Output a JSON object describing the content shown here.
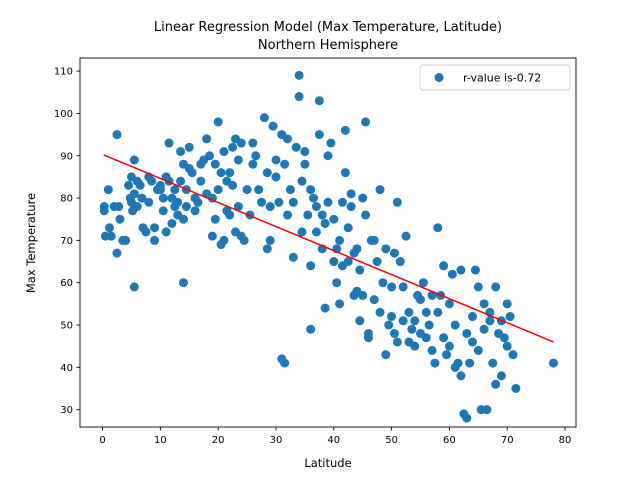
{
  "chart_data": {
    "type": "scatter",
    "title": "Linear Regression Model (Max Temperature, Latitude)",
    "subtitle": "Northern Hemisphere",
    "xlabel": "Latitude",
    "ylabel": "Max Temperature",
    "xlim": [
      -3.9,
      81.9
    ],
    "ylim": [
      25.9,
      113.1
    ],
    "xticks": [
      0,
      10,
      20,
      30,
      40,
      50,
      60,
      70,
      80
    ],
    "yticks": [
      30,
      40,
      50,
      60,
      70,
      80,
      90,
      100,
      110
    ],
    "grid": false,
    "legend": {
      "placement": "upper right",
      "label": "r-value is-0.72"
    },
    "colors": {
      "points": "#1f77b4",
      "regression": "#ff0000"
    },
    "regression": {
      "x": [
        0.2,
        78.0
      ],
      "y": [
        90.2,
        46.0
      ]
    },
    "series": [
      {
        "name": "r-value is-0.72",
        "points": [
          [
            0.3,
            78
          ],
          [
            0.3,
            77
          ],
          [
            0.5,
            71
          ],
          [
            1,
            82
          ],
          [
            1.2,
            73
          ],
          [
            1.5,
            71
          ],
          [
            2,
            78
          ],
          [
            2.5,
            95
          ],
          [
            2.5,
            67
          ],
          [
            2.8,
            78
          ],
          [
            3,
            75
          ],
          [
            3.5,
            70
          ],
          [
            4,
            70
          ],
          [
            4.5,
            83
          ],
          [
            4.8,
            80
          ],
          [
            5,
            85
          ],
          [
            5,
            79
          ],
          [
            5.2,
            77
          ],
          [
            5.5,
            89
          ],
          [
            5.5,
            59
          ],
          [
            5.5,
            81
          ],
          [
            6,
            84
          ],
          [
            6,
            78
          ],
          [
            6.5,
            83
          ],
          [
            6.8,
            80
          ],
          [
            7,
            73
          ],
          [
            7.5,
            72
          ],
          [
            8,
            85
          ],
          [
            8,
            79
          ],
          [
            8.5,
            84
          ],
          [
            9,
            70
          ],
          [
            9,
            73
          ],
          [
            9.5,
            82
          ],
          [
            10,
            83
          ],
          [
            10,
            82
          ],
          [
            10.5,
            80
          ],
          [
            10.5,
            77
          ],
          [
            11,
            72
          ],
          [
            11,
            85
          ],
          [
            11.5,
            93
          ],
          [
            11.5,
            84
          ],
          [
            12,
            80
          ],
          [
            12,
            74
          ],
          [
            12.5,
            78
          ],
          [
            12.5,
            82
          ],
          [
            13,
            76
          ],
          [
            13,
            79
          ],
          [
            13.5,
            84
          ],
          [
            13.5,
            91
          ],
          [
            14,
            88
          ],
          [
            14,
            75
          ],
          [
            14,
            60
          ],
          [
            14.5,
            82
          ],
          [
            14.5,
            78
          ],
          [
            15,
            87
          ],
          [
            15,
            92
          ],
          [
            15.5,
            86
          ],
          [
            16,
            80
          ],
          [
            16,
            77
          ],
          [
            16.5,
            79
          ],
          [
            17,
            84
          ],
          [
            17,
            88
          ],
          [
            17.5,
            89
          ],
          [
            18,
            81
          ],
          [
            18,
            94
          ],
          [
            18.5,
            90
          ],
          [
            19,
            71
          ],
          [
            19,
            80
          ],
          [
            19.5,
            75
          ],
          [
            19.5,
            88
          ],
          [
            20,
            98
          ],
          [
            20,
            82
          ],
          [
            20.5,
            86
          ],
          [
            20.5,
            69
          ],
          [
            21,
            91
          ],
          [
            21,
            70
          ],
          [
            21.5,
            84
          ],
          [
            21.5,
            77
          ],
          [
            22,
            86
          ],
          [
            22,
            76
          ],
          [
            22.5,
            83
          ],
          [
            22.5,
            92
          ],
          [
            23,
            94
          ],
          [
            23,
            72
          ],
          [
            23.5,
            78
          ],
          [
            23.5,
            89
          ],
          [
            24,
            93
          ],
          [
            24,
            71
          ],
          [
            24.5,
            70
          ],
          [
            25,
            82
          ],
          [
            25.5,
            76
          ],
          [
            26,
            88
          ],
          [
            26,
            93
          ],
          [
            26.5,
            90
          ],
          [
            27,
            82
          ],
          [
            27.5,
            79
          ],
          [
            28,
            99
          ],
          [
            28.5,
            86
          ],
          [
            28.5,
            68
          ],
          [
            29,
            70
          ],
          [
            29,
            78
          ],
          [
            29.5,
            97
          ],
          [
            30,
            85
          ],
          [
            30,
            89
          ],
          [
            30.5,
            79
          ],
          [
            31,
            95
          ],
          [
            31,
            42
          ],
          [
            31.5,
            41
          ],
          [
            31.5,
            88
          ],
          [
            32,
            94
          ],
          [
            32,
            76
          ],
          [
            32.5,
            82
          ],
          [
            33,
            66
          ],
          [
            33,
            79
          ],
          [
            33.5,
            92
          ],
          [
            34,
            104
          ],
          [
            34,
            109
          ],
          [
            34.5,
            84
          ],
          [
            34.5,
            72
          ],
          [
            35,
            88
          ],
          [
            35,
            91
          ],
          [
            35.5,
            76
          ],
          [
            36,
            82
          ],
          [
            36,
            49
          ],
          [
            36,
            64
          ],
          [
            36.5,
            80
          ],
          [
            37,
            72
          ],
          [
            37,
            78
          ],
          [
            37.5,
            95
          ],
          [
            37.5,
            103
          ],
          [
            38,
            76
          ],
          [
            38,
            68
          ],
          [
            38.5,
            74
          ],
          [
            38.5,
            54
          ],
          [
            39,
            90
          ],
          [
            39,
            79
          ],
          [
            39.5,
            93
          ],
          [
            40,
            75
          ],
          [
            40,
            65
          ],
          [
            40.5,
            68
          ],
          [
            40.5,
            60
          ],
          [
            41,
            70
          ],
          [
            41,
            55
          ],
          [
            41.5,
            64
          ],
          [
            41.5,
            79
          ],
          [
            42,
            96
          ],
          [
            42,
            86
          ],
          [
            42.5,
            73
          ],
          [
            42.5,
            65
          ],
          [
            43,
            78
          ],
          [
            43,
            81
          ],
          [
            43.5,
            57
          ],
          [
            43.5,
            67
          ],
          [
            44,
            58
          ],
          [
            44,
            68
          ],
          [
            44.5,
            51
          ],
          [
            44.5,
            63
          ],
          [
            45,
            80
          ],
          [
            45,
            57
          ],
          [
            45.5,
            98
          ],
          [
            45.5,
            76
          ],
          [
            46,
            48
          ],
          [
            46,
            47
          ],
          [
            46.5,
            70
          ],
          [
            47,
            56
          ],
          [
            47,
            70
          ],
          [
            47.5,
            65
          ],
          [
            48,
            82
          ],
          [
            48,
            53
          ],
          [
            48.5,
            60
          ],
          [
            49,
            68
          ],
          [
            49,
            43
          ],
          [
            49.5,
            50
          ],
          [
            50,
            52
          ],
          [
            50,
            59
          ],
          [
            50.5,
            67
          ],
          [
            50.5,
            48
          ],
          [
            51,
            79
          ],
          [
            51,
            46
          ],
          [
            51.5,
            65
          ],
          [
            52,
            59
          ],
          [
            52,
            51
          ],
          [
            52.5,
            71
          ],
          [
            53,
            53
          ],
          [
            53,
            46
          ],
          [
            53.5,
            49
          ],
          [
            54,
            51
          ],
          [
            54,
            45
          ],
          [
            54.5,
            57
          ],
          [
            55,
            56
          ],
          [
            55,
            48
          ],
          [
            55.5,
            60
          ],
          [
            56,
            47
          ],
          [
            56,
            53
          ],
          [
            56.5,
            50
          ],
          [
            57,
            44
          ],
          [
            57,
            57
          ],
          [
            57.5,
            41
          ],
          [
            58,
            53
          ],
          [
            58,
            73
          ],
          [
            58.5,
            57
          ],
          [
            59,
            64
          ],
          [
            59,
            47
          ],
          [
            59.5,
            43
          ],
          [
            60,
            45
          ],
          [
            60,
            55
          ],
          [
            60.5,
            62
          ],
          [
            61,
            40
          ],
          [
            61,
            50
          ],
          [
            61.5,
            41
          ],
          [
            62,
            38
          ],
          [
            62,
            63
          ],
          [
            62.5,
            29
          ],
          [
            63,
            28
          ],
          [
            63,
            48
          ],
          [
            63.5,
            41
          ],
          [
            64,
            46
          ],
          [
            64,
            52
          ],
          [
            64.5,
            63
          ],
          [
            65,
            59
          ],
          [
            65,
            44
          ],
          [
            65.5,
            30
          ],
          [
            66,
            55
          ],
          [
            66,
            49
          ],
          [
            66.5,
            30
          ],
          [
            67,
            51
          ],
          [
            67,
            53
          ],
          [
            67.5,
            41
          ],
          [
            68,
            36
          ],
          [
            68,
            59
          ],
          [
            68.5,
            48
          ],
          [
            69,
            38
          ],
          [
            69,
            51
          ],
          [
            69.5,
            47
          ],
          [
            70,
            55
          ],
          [
            70,
            45
          ],
          [
            70.5,
            52
          ],
          [
            71,
            43
          ],
          [
            71.5,
            35
          ],
          [
            78,
            41
          ]
        ]
      }
    ]
  }
}
